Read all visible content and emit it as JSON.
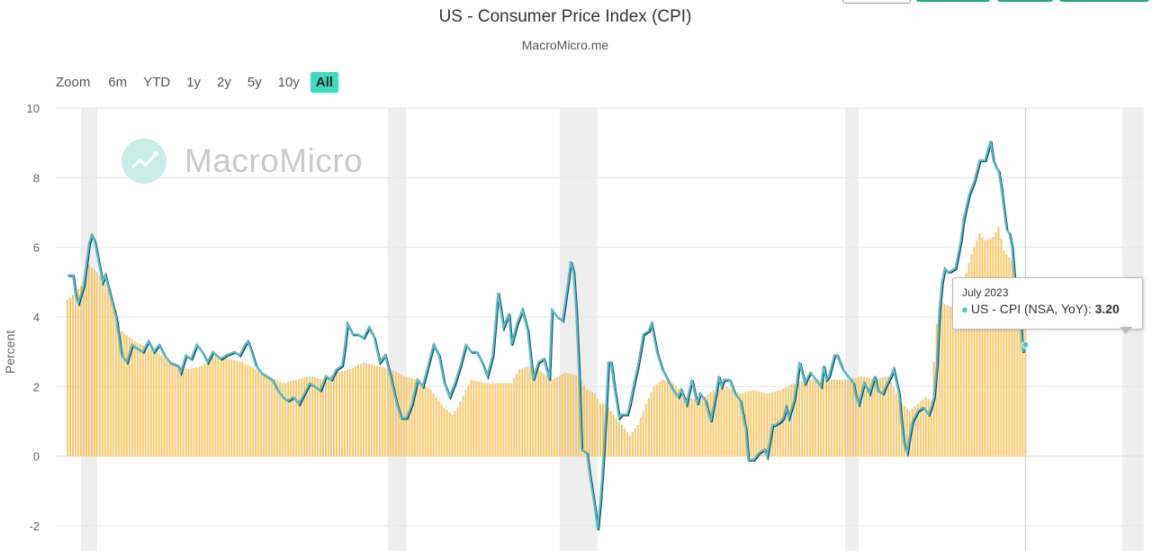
{
  "header": {
    "title": "US - Consumer Price Index (CPI)",
    "subtitle": "MacroMicro.me"
  },
  "range_selector": {
    "zoom_label": "Zoom",
    "buttons": [
      "6m",
      "YTD",
      "1y",
      "2y",
      "5y",
      "10y",
      "All"
    ],
    "active": "All"
  },
  "watermark": {
    "text": "MacroMicro",
    "logo_icon": "chart-trend-icon"
  },
  "tooltip": {
    "date": "July 2023",
    "series_label": "US - CPI (NSA, YoY):",
    "value": "3.20"
  },
  "colors": {
    "bars": "#f6c15b",
    "line_main": "#4fc3cf",
    "line_dark": "#2b3a4a",
    "recession": "#eeeeee",
    "range_active": "#3ddbc0"
  },
  "chart_data": {
    "type": "bar+line",
    "title": "US - Consumer Price Index (CPI)",
    "subtitle": "MacroMicro.me",
    "ylabel": "Percent",
    "ylim": [
      -2,
      10
    ],
    "yticks": [
      -2,
      0,
      2,
      4,
      6,
      8,
      10
    ],
    "grid": true,
    "x_range_index": [
      0,
      391
    ],
    "recession_index_ranges": [
      [
        5,
        11
      ],
      [
        119,
        126
      ],
      [
        183,
        197
      ],
      [
        289,
        294
      ],
      [
        392,
        400
      ]
    ],
    "series": [
      {
        "name": "US - CPI (NSA, YoY)",
        "type": "line",
        "keyframes": [
          [
            0,
            5.2
          ],
          [
            2,
            5.2
          ],
          [
            3,
            4.6
          ],
          [
            4,
            4.4
          ],
          [
            6,
            4.9
          ],
          [
            8,
            6.1
          ],
          [
            9,
            6.35
          ],
          [
            10,
            6.2
          ],
          [
            13,
            5.0
          ],
          [
            14,
            5.2
          ],
          [
            16,
            4.6
          ],
          [
            18,
            4.0
          ],
          [
            20,
            2.9
          ],
          [
            22,
            2.7
          ],
          [
            24,
            3.2
          ],
          [
            26,
            3.1
          ],
          [
            28,
            3.0
          ],
          [
            30,
            3.3
          ],
          [
            32,
            3.0
          ],
          [
            34,
            3.2
          ],
          [
            36,
            2.9
          ],
          [
            38,
            2.7
          ],
          [
            41,
            2.6
          ],
          [
            42,
            2.4
          ],
          [
            44,
            2.9
          ],
          [
            46,
            2.8
          ],
          [
            48,
            3.2
          ],
          [
            50,
            3.0
          ],
          [
            52,
            2.7
          ],
          [
            54,
            3.0
          ],
          [
            57,
            2.8
          ],
          [
            59,
            2.9
          ],
          [
            62,
            3.0
          ],
          [
            64,
            2.9
          ],
          [
            66,
            3.2
          ],
          [
            67,
            3.3
          ],
          [
            68,
            3.1
          ],
          [
            70,
            2.6
          ],
          [
            72,
            2.4
          ],
          [
            74,
            2.3
          ],
          [
            76,
            2.2
          ],
          [
            78,
            1.9
          ],
          [
            80,
            1.7
          ],
          [
            82,
            1.6
          ],
          [
            84,
            1.7
          ],
          [
            86,
            1.5
          ],
          [
            88,
            1.8
          ],
          [
            90,
            2.1
          ],
          [
            92,
            2.0
          ],
          [
            94,
            1.9
          ],
          [
            96,
            2.3
          ],
          [
            98,
            2.2
          ],
          [
            100,
            2.5
          ],
          [
            102,
            2.6
          ],
          [
            103,
            3.1
          ],
          [
            104,
            3.8
          ],
          [
            106,
            3.5
          ],
          [
            108,
            3.5
          ],
          [
            110,
            3.4
          ],
          [
            112,
            3.7
          ],
          [
            114,
            3.4
          ],
          [
            116,
            2.7
          ],
          [
            118,
            2.9
          ],
          [
            120,
            2.3
          ],
          [
            122,
            1.6
          ],
          [
            124,
            1.1
          ],
          [
            126,
            1.1
          ],
          [
            128,
            1.5
          ],
          [
            130,
            2.2
          ],
          [
            132,
            2.0
          ],
          [
            134,
            2.6
          ],
          [
            136,
            3.2
          ],
          [
            138,
            2.9
          ],
          [
            140,
            2.1
          ],
          [
            142,
            1.7
          ],
          [
            144,
            2.1
          ],
          [
            146,
            2.6
          ],
          [
            148,
            3.2
          ],
          [
            150,
            3.0
          ],
          [
            152,
            3.0
          ],
          [
            154,
            2.7
          ],
          [
            156,
            2.3
          ],
          [
            158,
            2.9
          ],
          [
            160,
            4.7
          ],
          [
            162,
            3.7
          ],
          [
            164,
            4.1
          ],
          [
            165,
            3.2
          ],
          [
            167,
            3.8
          ],
          [
            169,
            4.2
          ],
          [
            171,
            3.6
          ],
          [
            173,
            2.2
          ],
          [
            175,
            2.7
          ],
          [
            177,
            2.8
          ],
          [
            179,
            2.2
          ],
          [
            180,
            4.2
          ],
          [
            182,
            4.0
          ],
          [
            184,
            3.9
          ],
          [
            186,
            5.0
          ],
          [
            187,
            5.6
          ],
          [
            188,
            5.3
          ],
          [
            189,
            4.2
          ],
          [
            190,
            2.5
          ],
          [
            191,
            0.2
          ],
          [
            193,
            0.1
          ],
          [
            194,
            -0.5
          ],
          [
            196,
            -1.5
          ],
          [
            197,
            -2.1
          ],
          [
            198,
            -1.3
          ],
          [
            199,
            -0.2
          ],
          [
            200,
            1.2
          ],
          [
            201,
            2.7
          ],
          [
            202,
            2.7
          ],
          [
            203,
            2.1
          ],
          [
            205,
            1.1
          ],
          [
            206,
            1.2
          ],
          [
            207,
            1.2
          ],
          [
            208,
            1.2
          ],
          [
            209,
            1.5
          ],
          [
            210,
            1.9
          ],
          [
            212,
            2.6
          ],
          [
            214,
            3.5
          ],
          [
            216,
            3.6
          ],
          [
            217,
            3.8
          ],
          [
            218,
            3.4
          ],
          [
            219,
            3.0
          ],
          [
            221,
            2.5
          ],
          [
            223,
            2.2
          ],
          [
            225,
            1.9
          ],
          [
            227,
            1.7
          ],
          [
            228,
            1.9
          ],
          [
            230,
            1.5
          ],
          [
            232,
            2.2
          ],
          [
            234,
            1.5
          ],
          [
            235,
            1.8
          ],
          [
            237,
            1.6
          ],
          [
            239,
            1.0
          ],
          [
            241,
            1.8
          ],
          [
            242,
            2.3
          ],
          [
            243,
            2.0
          ],
          [
            244,
            2.2
          ],
          [
            246,
            2.2
          ],
          [
            248,
            1.8
          ],
          [
            250,
            1.6
          ],
          [
            252,
            0.8
          ],
          [
            253,
            -0.1
          ],
          [
            255,
            -0.1
          ],
          [
            257,
            0.1
          ],
          [
            259,
            0.2
          ],
          [
            260,
            0.0
          ],
          [
            262,
            0.9
          ],
          [
            263,
            0.9
          ],
          [
            265,
            1.0
          ],
          [
            266,
            1.1
          ],
          [
            267,
            1.4
          ],
          [
            268,
            1.1
          ],
          [
            270,
            1.6
          ],
          [
            271,
            2.1
          ],
          [
            272,
            2.7
          ],
          [
            273,
            2.4
          ],
          [
            274,
            2.1
          ],
          [
            276,
            2.4
          ],
          [
            278,
            2.2
          ],
          [
            280,
            2.0
          ],
          [
            281,
            2.6
          ],
          [
            282,
            2.2
          ],
          [
            283,
            2.3
          ],
          [
            285,
            2.9
          ],
          [
            286,
            2.9
          ],
          [
            288,
            2.5
          ],
          [
            290,
            2.3
          ],
          [
            292,
            2.1
          ],
          [
            293,
            1.7
          ],
          [
            294,
            1.5
          ],
          [
            296,
            2.1
          ],
          [
            298,
            1.8
          ],
          [
            300,
            2.3
          ],
          [
            301,
            1.9
          ],
          [
            303,
            1.8
          ],
          [
            304,
            2.0
          ],
          [
            306,
            2.3
          ],
          [
            307,
            2.5
          ],
          [
            309,
            1.8
          ],
          [
            310,
            0.9
          ],
          [
            311,
            0.3
          ],
          [
            312,
            0.1
          ],
          [
            313,
            0.6
          ],
          [
            314,
            1.0
          ],
          [
            316,
            1.3
          ],
          [
            318,
            1.4
          ],
          [
            320,
            1.2
          ],
          [
            321,
            1.4
          ],
          [
            322,
            1.7
          ],
          [
            323,
            2.6
          ],
          [
            324,
            4.2
          ],
          [
            325,
            5.0
          ],
          [
            326,
            5.4
          ],
          [
            327,
            5.3
          ],
          [
            328,
            5.3
          ],
          [
            330,
            5.4
          ],
          [
            332,
            6.2
          ],
          [
            333,
            6.8
          ],
          [
            335,
            7.5
          ],
          [
            337,
            7.9
          ],
          [
            339,
            8.5
          ],
          [
            341,
            8.5
          ],
          [
            343,
            9.06
          ],
          [
            344,
            8.5
          ],
          [
            345,
            8.3
          ],
          [
            346,
            8.2
          ],
          [
            347,
            7.7
          ],
          [
            348,
            7.1
          ],
          [
            349,
            6.5
          ],
          [
            350,
            6.4
          ],
          [
            351,
            6.0
          ],
          [
            352,
            5.0
          ],
          [
            353,
            4.9
          ],
          [
            354,
            4.0
          ],
          [
            355,
            3.0
          ],
          [
            356,
            3.2
          ]
        ]
      },
      {
        "name": "bars",
        "type": "bar",
        "keyframes": [
          [
            0,
            4.5
          ],
          [
            3,
            4.7
          ],
          [
            6,
            5.0
          ],
          [
            8,
            5.5
          ],
          [
            12,
            5.2
          ],
          [
            15,
            4.8
          ],
          [
            18,
            4.2
          ],
          [
            20,
            3.6
          ],
          [
            25,
            3.3
          ],
          [
            30,
            3.1
          ],
          [
            35,
            2.9
          ],
          [
            40,
            2.6
          ],
          [
            45,
            2.5
          ],
          [
            50,
            2.6
          ],
          [
            55,
            2.9
          ],
          [
            60,
            2.8
          ],
          [
            65,
            2.7
          ],
          [
            70,
            2.5
          ],
          [
            75,
            2.3
          ],
          [
            80,
            2.1
          ],
          [
            85,
            2.2
          ],
          [
            90,
            2.3
          ],
          [
            95,
            2.2
          ],
          [
            100,
            2.4
          ],
          [
            105,
            2.5
          ],
          [
            110,
            2.7
          ],
          [
            115,
            2.6
          ],
          [
            120,
            2.5
          ],
          [
            125,
            2.3
          ],
          [
            130,
            2.2
          ],
          [
            135,
            1.9
          ],
          [
            140,
            1.4
          ],
          [
            143,
            1.2
          ],
          [
            145,
            1.4
          ],
          [
            148,
            1.9
          ],
          [
            150,
            2.2
          ],
          [
            155,
            2.1
          ],
          [
            160,
            2.1
          ],
          [
            165,
            2.1
          ],
          [
            168,
            2.5
          ],
          [
            172,
            2.6
          ],
          [
            175,
            2.5
          ],
          [
            180,
            2.2
          ],
          [
            185,
            2.4
          ],
          [
            190,
            2.3
          ],
          [
            193,
            1.9
          ],
          [
            196,
            1.8
          ],
          [
            198,
            1.5
          ],
          [
            200,
            1.5
          ],
          [
            203,
            1.2
          ],
          [
            207,
            0.8
          ],
          [
            209,
            0.6
          ],
          [
            212,
            0.9
          ],
          [
            215,
            1.5
          ],
          [
            218,
            2.0
          ],
          [
            221,
            2.2
          ],
          [
            225,
            2.1
          ],
          [
            230,
            1.7
          ],
          [
            235,
            1.6
          ],
          [
            240,
            1.9
          ],
          [
            245,
            2.0
          ],
          [
            250,
            1.8
          ],
          [
            255,
            1.9
          ],
          [
            260,
            1.8
          ],
          [
            265,
            1.9
          ],
          [
            270,
            2.1
          ],
          [
            275,
            2.2
          ],
          [
            280,
            2.2
          ],
          [
            285,
            2.2
          ],
          [
            290,
            2.2
          ],
          [
            295,
            2.3
          ],
          [
            300,
            2.2
          ],
          [
            305,
            2.3
          ],
          [
            310,
            1.5
          ],
          [
            313,
            1.3
          ],
          [
            316,
            1.5
          ],
          [
            319,
            1.7
          ],
          [
            321,
            1.6
          ],
          [
            323,
            3.8
          ],
          [
            325,
            4.4
          ],
          [
            328,
            4.3
          ],
          [
            331,
            4.6
          ],
          [
            333,
            5.0
          ],
          [
            336,
            5.8
          ],
          [
            339,
            6.4
          ],
          [
            341,
            6.2
          ],
          [
            344,
            6.3
          ],
          [
            346,
            6.6
          ],
          [
            348,
            5.9
          ],
          [
            350,
            5.7
          ],
          [
            352,
            5.5
          ],
          [
            354,
            4.8
          ],
          [
            356,
            4.7
          ]
        ]
      }
    ]
  }
}
